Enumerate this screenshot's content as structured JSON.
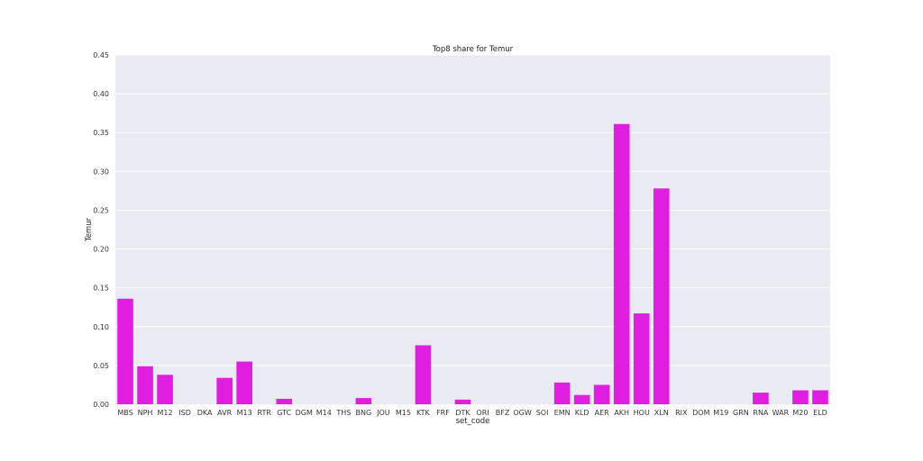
{
  "chart_data": {
    "type": "bar",
    "title": "Top8 share for Temur",
    "xlabel": "set_code",
    "ylabel": "Temur",
    "ylim": [
      0,
      0.45
    ],
    "yticks": [
      "0.00",
      "0.05",
      "0.10",
      "0.15",
      "0.20",
      "0.25",
      "0.30",
      "0.35",
      "0.40",
      "0.45"
    ],
    "grid": true,
    "bar_color": "#e01ee0",
    "background_color": "#eaeaf2",
    "categories": [
      "MBS",
      "NPH",
      "M12",
      "ISD",
      "DKA",
      "AVR",
      "M13",
      "RTR",
      "GTC",
      "DGM",
      "M14",
      "THS",
      "BNG",
      "JOU",
      "M15",
      "KTK",
      "FRF",
      "DTK",
      "ORI",
      "BFZ",
      "OGW",
      "SOI",
      "EMN",
      "KLD",
      "AER",
      "AKH",
      "HOU",
      "XLN",
      "RIX",
      "DOM",
      "M19",
      "GRN",
      "RNA",
      "WAR",
      "M20",
      "ELD"
    ],
    "values": [
      0.136,
      0.049,
      0.038,
      0,
      0,
      0.034,
      0.055,
      0,
      0.007,
      0,
      0,
      0,
      0.008,
      0,
      0,
      0.076,
      0,
      0.006,
      0,
      0,
      0,
      0,
      0.028,
      0.012,
      0.025,
      0.361,
      0.117,
      0.278,
      0,
      0,
      0,
      0,
      0.015,
      0,
      0.018,
      0.018
    ]
  }
}
